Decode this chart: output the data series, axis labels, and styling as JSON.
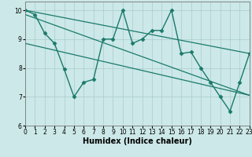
{
  "series": [
    {
      "x": [
        0,
        1,
        2,
        3,
        4,
        5,
        6,
        7,
        8,
        9,
        10,
        11,
        12,
        13,
        14,
        15,
        16,
        17,
        18,
        19,
        20,
        21,
        22,
        23
      ],
      "y": [
        10.0,
        9.85,
        9.2,
        8.85,
        7.95,
        7.0,
        7.5,
        7.6,
        9.0,
        9.0,
        10.0,
        8.85,
        9.0,
        9.3,
        9.3,
        10.0,
        8.5,
        8.55,
        8.0,
        7.5,
        7.0,
        6.5,
        7.5,
        8.5
      ],
      "color": "#1a7a6a",
      "marker": "D",
      "markersize": 2.5,
      "linewidth": 1.0
    },
    {
      "x": [
        0,
        23
      ],
      "y": [
        10.0,
        8.5
      ],
      "color": "#1a7a6a",
      "marker": null,
      "markersize": 0,
      "linewidth": 0.9
    },
    {
      "x": [
        0,
        23
      ],
      "y": [
        9.85,
        7.05
      ],
      "color": "#1a7a6a",
      "marker": null,
      "markersize": 0,
      "linewidth": 0.9
    },
    {
      "x": [
        0,
        23
      ],
      "y": [
        8.85,
        7.05
      ],
      "color": "#1a7a6a",
      "marker": null,
      "markersize": 0,
      "linewidth": 0.9
    }
  ],
  "xlim": [
    0,
    23
  ],
  "ylim": [
    6,
    10.3
  ],
  "yticks": [
    6,
    7,
    8,
    9,
    10
  ],
  "xticks": [
    0,
    1,
    2,
    3,
    4,
    5,
    6,
    7,
    8,
    9,
    10,
    11,
    12,
    13,
    14,
    15,
    16,
    17,
    18,
    19,
    20,
    21,
    22,
    23
  ],
  "xlabel": "Humidex (Indice chaleur)",
  "background_color": "#cce8e8",
  "grid_color": "#aacccc",
  "line_color": "#1a7a6a",
  "tick_fontsize": 5.5,
  "xlabel_fontsize": 7.0
}
